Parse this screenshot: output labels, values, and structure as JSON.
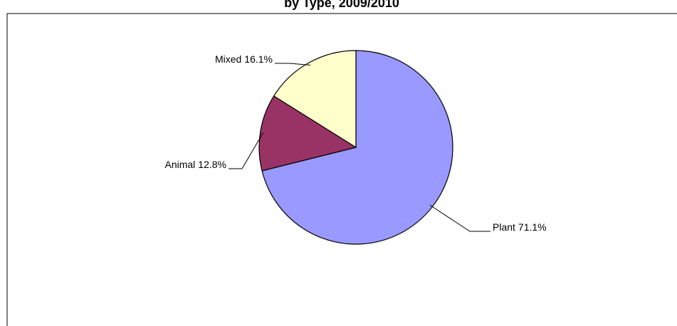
{
  "chart_data": {
    "type": "pie",
    "title": "by Type, 2009/2010",
    "categories": [
      "Plant",
      "Animal",
      "Mixed"
    ],
    "values": [
      71.1,
      12.8,
      16.1
    ],
    "value_labels": [
      "71.1%",
      "12.8%",
      "16.1%"
    ],
    "colors": [
      "#9999ff",
      "#993366",
      "#ffffcc"
    ]
  }
}
